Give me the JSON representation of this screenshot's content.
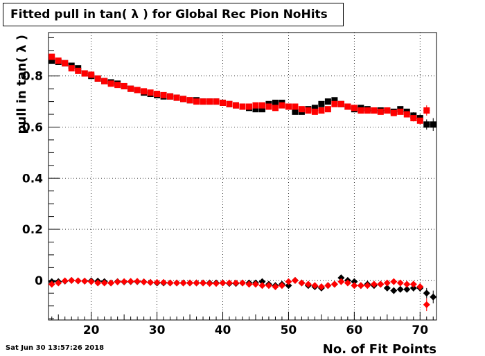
{
  "title": "Fitted pull in tan( λ ) for Global Rec Pion NoHits",
  "timestamp": "Sat Jun 30 13:57:26 2018",
  "chart_data": {
    "type": "scatter",
    "title": "Fitted pull in tan( λ ) for Global Rec Pion NoHits",
    "xlabel": "No. of Fit Points",
    "ylabel": "pull in tan( λ )",
    "xlim": [
      13.5,
      72.5
    ],
    "ylim": [
      -0.155,
      0.97
    ],
    "x_ticks": [
      20,
      30,
      40,
      50,
      60,
      70
    ],
    "y_ticks": [
      0,
      0.2,
      0.4,
      0.6,
      0.8
    ],
    "y_tick_labels": [
      "0",
      "0.2",
      "0.4",
      "0.6",
      "0.8"
    ],
    "grid": true,
    "series": [
      {
        "marker": "square",
        "color": "#000000",
        "x": [
          14,
          15,
          16,
          17,
          18,
          19,
          20,
          21,
          22,
          23,
          24,
          25,
          26,
          27,
          28,
          29,
          30,
          31,
          32,
          33,
          34,
          35,
          36,
          37,
          38,
          39,
          40,
          41,
          42,
          43,
          44,
          45,
          46,
          47,
          48,
          49,
          50,
          51,
          52,
          53,
          54,
          55,
          56,
          57,
          58,
          59,
          60,
          61,
          62,
          63,
          64,
          65,
          66,
          67,
          68,
          69,
          70,
          71,
          72
        ],
        "y": [
          0.86,
          0.855,
          0.85,
          0.84,
          0.83,
          0.81,
          0.8,
          0.79,
          0.78,
          0.775,
          0.77,
          0.76,
          0.75,
          0.745,
          0.735,
          0.73,
          0.725,
          0.72,
          0.72,
          0.715,
          0.71,
          0.705,
          0.705,
          0.7,
          0.7,
          0.7,
          0.695,
          0.69,
          0.685,
          0.68,
          0.675,
          0.67,
          0.67,
          0.69,
          0.695,
          0.695,
          0.68,
          0.66,
          0.66,
          0.67,
          0.675,
          0.69,
          0.7,
          0.705,
          0.69,
          0.68,
          0.67,
          0.675,
          0.67,
          0.665,
          0.665,
          0.665,
          0.66,
          0.67,
          0.66,
          0.645,
          0.635,
          0.61,
          0.61
        ],
        "err": [
          0.006,
          0.005,
          0.005,
          0.005,
          0.005,
          0.005,
          0.005,
          0.005,
          0.005,
          0.005,
          0.005,
          0.005,
          0.005,
          0.005,
          0.005,
          0.005,
          0.005,
          0.005,
          0.005,
          0.005,
          0.005,
          0.005,
          0.005,
          0.005,
          0.005,
          0.005,
          0.005,
          0.005,
          0.005,
          0.005,
          0.006,
          0.006,
          0.006,
          0.006,
          0.006,
          0.006,
          0.007,
          0.007,
          0.007,
          0.007,
          0.007,
          0.007,
          0.008,
          0.008,
          0.008,
          0.008,
          0.008,
          0.009,
          0.009,
          0.009,
          0.01,
          0.01,
          0.01,
          0.011,
          0.012,
          0.013,
          0.015,
          0.02,
          0.025
        ]
      },
      {
        "marker": "square",
        "color": "#ff0000",
        "x": [
          14,
          15,
          16,
          17,
          18,
          19,
          20,
          21,
          22,
          23,
          24,
          25,
          26,
          27,
          28,
          29,
          30,
          31,
          32,
          33,
          34,
          35,
          36,
          37,
          38,
          39,
          40,
          41,
          42,
          43,
          44,
          45,
          46,
          47,
          48,
          49,
          50,
          51,
          52,
          53,
          54,
          55,
          56,
          57,
          58,
          59,
          60,
          61,
          62,
          63,
          64,
          65,
          66,
          67,
          68,
          69,
          70,
          71
        ],
        "y": [
          0.875,
          0.86,
          0.85,
          0.83,
          0.82,
          0.81,
          0.805,
          0.79,
          0.78,
          0.77,
          0.765,
          0.76,
          0.75,
          0.745,
          0.74,
          0.735,
          0.73,
          0.725,
          0.72,
          0.715,
          0.71,
          0.705,
          0.7,
          0.7,
          0.7,
          0.7,
          0.695,
          0.69,
          0.685,
          0.68,
          0.68,
          0.685,
          0.685,
          0.68,
          0.675,
          0.685,
          0.68,
          0.68,
          0.67,
          0.665,
          0.66,
          0.665,
          0.67,
          0.69,
          0.69,
          0.68,
          0.675,
          0.665,
          0.665,
          0.665,
          0.66,
          0.665,
          0.655,
          0.66,
          0.65,
          0.635,
          0.625,
          0.665
        ],
        "err": [
          0.006,
          0.005,
          0.005,
          0.005,
          0.005,
          0.005,
          0.005,
          0.005,
          0.005,
          0.005,
          0.005,
          0.005,
          0.005,
          0.005,
          0.005,
          0.005,
          0.005,
          0.005,
          0.005,
          0.005,
          0.005,
          0.005,
          0.005,
          0.005,
          0.005,
          0.005,
          0.005,
          0.005,
          0.005,
          0.005,
          0.006,
          0.006,
          0.006,
          0.006,
          0.006,
          0.006,
          0.007,
          0.007,
          0.007,
          0.007,
          0.007,
          0.007,
          0.008,
          0.008,
          0.008,
          0.008,
          0.008,
          0.009,
          0.009,
          0.009,
          0.01,
          0.01,
          0.01,
          0.011,
          0.012,
          0.013,
          0.015,
          0.02
        ]
      },
      {
        "marker": "diamond",
        "color": "#000000",
        "x": [
          14,
          15,
          16,
          17,
          18,
          19,
          20,
          21,
          22,
          23,
          24,
          25,
          26,
          27,
          28,
          29,
          30,
          31,
          32,
          33,
          34,
          35,
          36,
          37,
          38,
          39,
          40,
          41,
          42,
          43,
          44,
          45,
          46,
          47,
          48,
          49,
          50,
          51,
          52,
          53,
          54,
          55,
          56,
          57,
          58,
          59,
          60,
          61,
          62,
          63,
          64,
          65,
          66,
          67,
          68,
          69,
          70,
          71,
          72
        ],
        "y": [
          -0.005,
          -0.005,
          -0.003,
          0.0,
          -0.002,
          -0.003,
          -0.002,
          -0.003,
          -0.005,
          -0.01,
          -0.005,
          -0.006,
          -0.005,
          -0.005,
          -0.006,
          -0.008,
          -0.01,
          -0.01,
          -0.01,
          -0.01,
          -0.01,
          -0.01,
          -0.01,
          -0.01,
          -0.01,
          -0.01,
          -0.01,
          -0.012,
          -0.012,
          -0.01,
          -0.01,
          -0.01,
          -0.005,
          -0.015,
          -0.02,
          -0.015,
          -0.02,
          0.0,
          -0.01,
          -0.02,
          -0.025,
          -0.03,
          -0.02,
          -0.015,
          0.01,
          0.0,
          -0.005,
          -0.02,
          -0.015,
          -0.02,
          -0.015,
          -0.03,
          -0.04,
          -0.035,
          -0.035,
          -0.03,
          -0.03,
          -0.05,
          -0.065
        ],
        "err": [
          0.005,
          0.005,
          0.005,
          0.005,
          0.005,
          0.005,
          0.005,
          0.005,
          0.005,
          0.005,
          0.005,
          0.005,
          0.005,
          0.005,
          0.005,
          0.005,
          0.005,
          0.005,
          0.005,
          0.005,
          0.005,
          0.005,
          0.005,
          0.005,
          0.005,
          0.005,
          0.005,
          0.005,
          0.005,
          0.005,
          0.006,
          0.006,
          0.006,
          0.006,
          0.006,
          0.006,
          0.007,
          0.007,
          0.007,
          0.007,
          0.007,
          0.007,
          0.008,
          0.008,
          0.008,
          0.008,
          0.008,
          0.009,
          0.009,
          0.009,
          0.01,
          0.01,
          0.01,
          0.011,
          0.012,
          0.013,
          0.015,
          0.02,
          0.025
        ]
      },
      {
        "marker": "diamond",
        "color": "#ff0000",
        "x": [
          14,
          15,
          16,
          17,
          18,
          19,
          20,
          21,
          22,
          23,
          24,
          25,
          26,
          27,
          28,
          29,
          30,
          31,
          32,
          33,
          34,
          35,
          36,
          37,
          38,
          39,
          40,
          41,
          42,
          43,
          44,
          45,
          46,
          47,
          48,
          49,
          50,
          51,
          52,
          53,
          54,
          55,
          56,
          57,
          58,
          59,
          60,
          61,
          62,
          63,
          64,
          65,
          66,
          67,
          68,
          69,
          70,
          71
        ],
        "y": [
          -0.015,
          -0.01,
          -0.002,
          0.0,
          -0.002,
          -0.003,
          -0.005,
          -0.01,
          -0.01,
          -0.01,
          -0.006,
          -0.005,
          -0.004,
          -0.004,
          -0.006,
          -0.008,
          -0.008,
          -0.008,
          -0.01,
          -0.01,
          -0.01,
          -0.01,
          -0.01,
          -0.01,
          -0.012,
          -0.012,
          -0.01,
          -0.01,
          -0.01,
          -0.01,
          -0.015,
          -0.015,
          -0.02,
          -0.02,
          -0.025,
          -0.02,
          -0.005,
          0.0,
          -0.01,
          -0.015,
          -0.02,
          -0.025,
          -0.02,
          -0.015,
          -0.005,
          -0.01,
          -0.02,
          -0.02,
          -0.02,
          -0.015,
          -0.015,
          -0.01,
          -0.005,
          -0.01,
          -0.015,
          -0.015,
          -0.025,
          -0.095
        ],
        "err": [
          0.005,
          0.005,
          0.005,
          0.005,
          0.005,
          0.005,
          0.005,
          0.005,
          0.005,
          0.005,
          0.005,
          0.005,
          0.005,
          0.005,
          0.005,
          0.005,
          0.005,
          0.005,
          0.005,
          0.005,
          0.005,
          0.005,
          0.005,
          0.005,
          0.005,
          0.005,
          0.005,
          0.005,
          0.005,
          0.005,
          0.006,
          0.006,
          0.006,
          0.006,
          0.006,
          0.006,
          0.007,
          0.007,
          0.007,
          0.007,
          0.007,
          0.007,
          0.008,
          0.008,
          0.008,
          0.008,
          0.008,
          0.009,
          0.009,
          0.009,
          0.01,
          0.01,
          0.01,
          0.011,
          0.012,
          0.013,
          0.015,
          0.025
        ]
      }
    ]
  }
}
